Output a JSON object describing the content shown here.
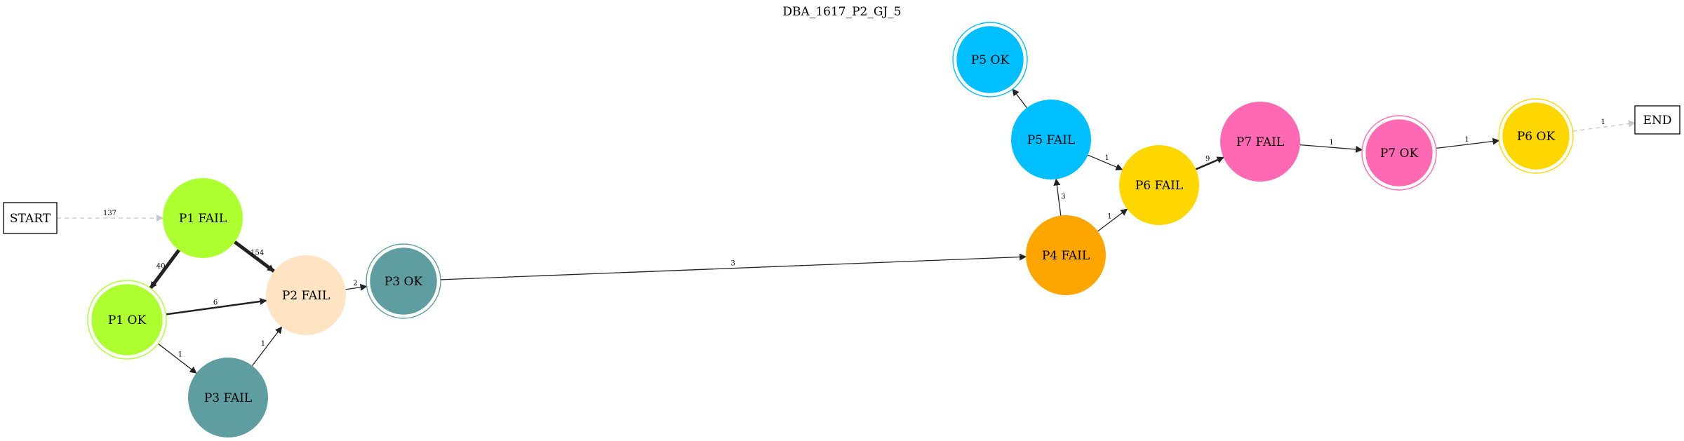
{
  "title": "DBA_1617_P2_GJ_5",
  "nodes": [
    {
      "id": "start",
      "label": "START",
      "shape": "box"
    },
    {
      "id": "end",
      "label": "END",
      "shape": "box"
    },
    {
      "id": "p1fail",
      "label": "P1 FAIL",
      "shape": "circle",
      "color": "#adff2f"
    },
    {
      "id": "p1ok",
      "label": "P1 OK",
      "shape": "doublecircle",
      "color": "#adff2f"
    },
    {
      "id": "p2fail",
      "label": "P2 FAIL",
      "shape": "circle",
      "color": "#ffe4c4"
    },
    {
      "id": "p3fail",
      "label": "P3 FAIL",
      "shape": "circle",
      "color": "#5f9ea0"
    },
    {
      "id": "p3ok",
      "label": "P3 OK",
      "shape": "doublecircle",
      "color": "#5f9ea0"
    },
    {
      "id": "p4fail",
      "label": "P4 FAIL",
      "shape": "circle",
      "color": "#ffa500"
    },
    {
      "id": "p5fail",
      "label": "P5 FAIL",
      "shape": "circle",
      "color": "#00bfff"
    },
    {
      "id": "p5ok",
      "label": "P5 OK",
      "shape": "doublecircle",
      "color": "#00bfff"
    },
    {
      "id": "p6fail",
      "label": "P6 FAIL",
      "shape": "circle",
      "color": "#ffd700"
    },
    {
      "id": "p6ok",
      "label": "P6 OK",
      "shape": "doublecircle",
      "color": "#ffd700"
    },
    {
      "id": "p7fail",
      "label": "P7 FAIL",
      "shape": "circle",
      "color": "#ff69b4"
    },
    {
      "id": "p7ok",
      "label": "P7 OK",
      "shape": "doublecircle",
      "color": "#ff69b4"
    }
  ],
  "edges": [
    {
      "from": "start",
      "to": "p1fail",
      "label": "137",
      "style": "dashed"
    },
    {
      "from": "p1fail",
      "to": "p2fail",
      "label": "154",
      "style": "bold"
    },
    {
      "from": "p1fail",
      "to": "p1ok",
      "label": "40",
      "style": "bold"
    },
    {
      "from": "p1ok",
      "to": "p2fail",
      "label": "6",
      "style": "medium"
    },
    {
      "from": "p1ok",
      "to": "p3fail",
      "label": "1",
      "style": "normal"
    },
    {
      "from": "p3fail",
      "to": "p2fail",
      "label": "1",
      "style": "normal"
    },
    {
      "from": "p2fail",
      "to": "p3ok",
      "label": "2",
      "style": "normal"
    },
    {
      "from": "p3ok",
      "to": "p4fail",
      "label": "3",
      "style": "normal"
    },
    {
      "from": "p4fail",
      "to": "p5fail",
      "label": "3",
      "style": "normal"
    },
    {
      "from": "p4fail",
      "to": "p6fail",
      "label": "1",
      "style": "normal"
    },
    {
      "from": "p5fail",
      "to": "p5ok",
      "label": "",
      "style": "normal"
    },
    {
      "from": "p5fail",
      "to": "p6fail",
      "label": "1",
      "style": "normal"
    },
    {
      "from": "p6fail",
      "to": "p7fail",
      "label": "9",
      "style": "medium"
    },
    {
      "from": "p7fail",
      "to": "p7ok",
      "label": "1",
      "style": "normal"
    },
    {
      "from": "p7ok",
      "to": "p6ok",
      "label": "1",
      "style": "normal"
    },
    {
      "from": "p6ok",
      "to": "end",
      "label": "1",
      "style": "dashed"
    }
  ],
  "colors": {
    "edge": "#222222",
    "dashed_edge": "#c8c8c8",
    "box_stroke": "#000000"
  }
}
